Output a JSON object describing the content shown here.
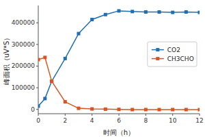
{
  "chart_data": {
    "type": "line",
    "x_label": "时间（h）",
    "y_label": "峰面积（uV*S）",
    "x": [
      0,
      0.5,
      1,
      2,
      3,
      4,
      5,
      6,
      7,
      8,
      9,
      10,
      11,
      12
    ],
    "series": [
      {
        "name": "CO2",
        "color": "#1f6fb4",
        "values": [
          15000,
          50000,
          130000,
          235000,
          350000,
          415000,
          438000,
          455000,
          452000,
          450000,
          450000,
          448000,
          450000,
          448000
        ]
      },
      {
        "name": "CH3CHO",
        "color": "#d9541e",
        "values": [
          230000,
          240000,
          130000,
          35000,
          5000,
          2000,
          1000,
          0,
          -1000,
          -1000,
          -1000,
          -1000,
          -1000,
          -1000
        ]
      }
    ],
    "xlim": [
      0,
      12
    ],
    "ylim": [
      -20000,
      480000
    ],
    "xticks": [
      0,
      2,
      4,
      6,
      8,
      10,
      12
    ],
    "yticks": [
      0,
      100000,
      200000,
      300000,
      400000
    ],
    "marker": "square",
    "grid": false,
    "legend": "right"
  }
}
